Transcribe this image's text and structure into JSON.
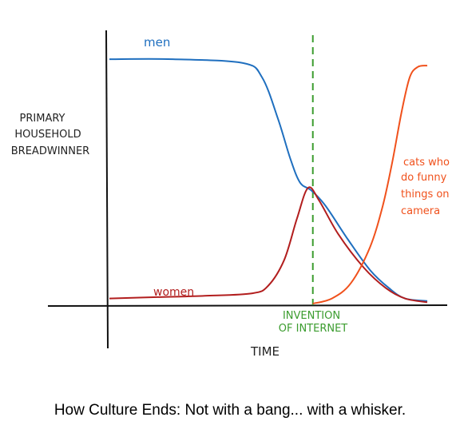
{
  "chart_data": {
    "type": "line",
    "ylabel_lines": [
      "PRIMARY",
      "HOUSEHOLD",
      "BREADWINNER"
    ],
    "xlabel": "TIME",
    "series": [
      {
        "name": "men",
        "color": "#1f6fbf",
        "points": [
          [
            0,
            0.95
          ],
          [
            0.2,
            0.95
          ],
          [
            0.42,
            0.935
          ],
          [
            0.48,
            0.88
          ],
          [
            0.53,
            0.72
          ],
          [
            0.57,
            0.56
          ],
          [
            0.6,
            0.47
          ],
          [
            0.635,
            0.44
          ],
          [
            0.68,
            0.38
          ],
          [
            0.75,
            0.25
          ],
          [
            0.82,
            0.13
          ],
          [
            0.88,
            0.06
          ],
          [
            0.93,
            0.02
          ],
          [
            1.0,
            0.01
          ]
        ]
      },
      {
        "name": "women",
        "color": "#b21e1e",
        "points": [
          [
            0,
            0.02
          ],
          [
            0.15,
            0.025
          ],
          [
            0.3,
            0.03
          ],
          [
            0.45,
            0.04
          ],
          [
            0.5,
            0.07
          ],
          [
            0.55,
            0.17
          ],
          [
            0.59,
            0.33
          ],
          [
            0.625,
            0.45
          ],
          [
            0.66,
            0.4
          ],
          [
            0.72,
            0.27
          ],
          [
            0.8,
            0.14
          ],
          [
            0.87,
            0.06
          ],
          [
            0.93,
            0.02
          ],
          [
            1.0,
            0.005
          ]
        ]
      },
      {
        "name_lines": [
          "cats who",
          "do funny",
          "things on",
          "camera"
        ],
        "color": "#f0511c",
        "points": [
          [
            0.64,
            0.0
          ],
          [
            0.7,
            0.02
          ],
          [
            0.76,
            0.08
          ],
          [
            0.82,
            0.22
          ],
          [
            0.86,
            0.38
          ],
          [
            0.89,
            0.55
          ],
          [
            0.92,
            0.75
          ],
          [
            0.945,
            0.88
          ],
          [
            0.97,
            0.92
          ],
          [
            1.0,
            0.925
          ]
        ]
      }
    ],
    "annotations": [
      {
        "type": "vline",
        "x": 0.64,
        "color": "#3b9c2e",
        "label_lines": [
          "INVENTION",
          "OF INTERNET"
        ]
      }
    ],
    "caption": "How Culture Ends: Not with a bang... with a whisker."
  }
}
